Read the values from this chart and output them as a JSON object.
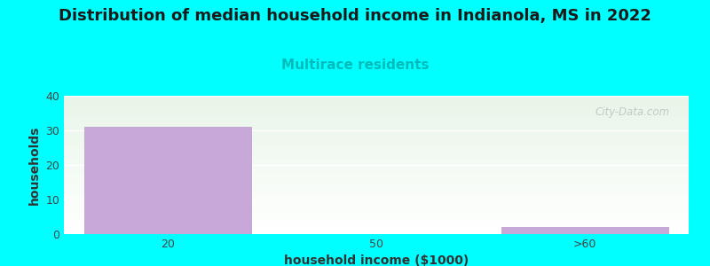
{
  "title": "Distribution of median household income in Indianola, MS in 2022",
  "subtitle": "Multirace residents",
  "subtitle_color": "#00bbbb",
  "xlabel": "household income ($1000)",
  "ylabel": "households",
  "categories": [
    "20",
    "50",
    ">60"
  ],
  "values": [
    31,
    0,
    2
  ],
  "bar_color": "#c8a8d8",
  "bar_edge_color": "#b899c9",
  "ylim": [
    0,
    40
  ],
  "yticks": [
    0,
    10,
    20,
    30,
    40
  ],
  "background_color": "#00ffff",
  "plot_bg_color_top": "#e8f5e8",
  "plot_bg_color_bottom": "#ffffff",
  "title_fontsize": 13,
  "subtitle_fontsize": 11,
  "axis_label_fontsize": 10,
  "tick_fontsize": 9,
  "watermark": "City-Data.com"
}
